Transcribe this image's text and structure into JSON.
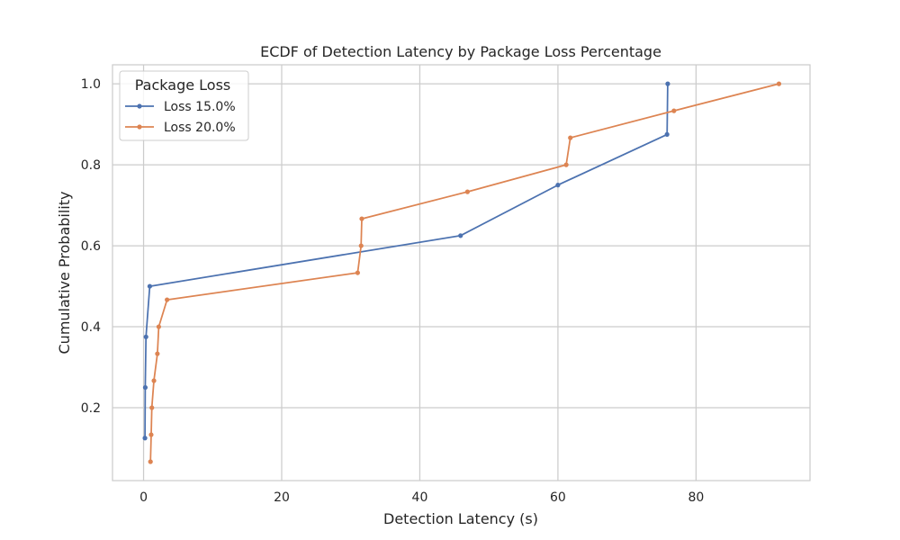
{
  "chart_data": {
    "type": "line",
    "title": "ECDF of Detection Latency by Package Loss Percentage",
    "xlabel": "Detection Latency (s)",
    "ylabel": "Cumulative Probability",
    "xlim": [
      -4.5,
      96.5
    ],
    "ylim": [
      0.02,
      1.047
    ],
    "xticks": [
      0,
      20,
      40,
      60,
      80
    ],
    "yticks": [
      0.2,
      0.4,
      0.6,
      0.8,
      1.0
    ],
    "xtick_labels": [
      "0",
      "20",
      "40",
      "60",
      "80"
    ],
    "ytick_labels": [
      "0.2",
      "0.4",
      "0.6",
      "0.8",
      "1.0"
    ],
    "grid": true,
    "legend": {
      "title": "Package Loss",
      "placement": "top-left"
    },
    "series": [
      {
        "name": "Loss 15.0%",
        "color": "#4c72b0",
        "x": [
          0.2,
          0.25,
          0.35,
          0.9,
          45.9,
          60.0,
          75.8,
          75.9
        ],
        "y": [
          0.125,
          0.25,
          0.375,
          0.5,
          0.625,
          0.75,
          0.875,
          1.0
        ]
      },
      {
        "name": "Loss 20.0%",
        "color": "#dd8452",
        "x": [
          1.0,
          1.1,
          1.2,
          1.5,
          2.0,
          2.2,
          3.4,
          31.0,
          31.5,
          31.6,
          46.9,
          61.2,
          61.8,
          76.8,
          92.0
        ],
        "y": [
          0.0667,
          0.1333,
          0.2,
          0.2667,
          0.3333,
          0.4,
          0.4667,
          0.5333,
          0.6,
          0.6667,
          0.7333,
          0.8,
          0.8667,
          0.9333,
          1.0
        ]
      }
    ]
  }
}
